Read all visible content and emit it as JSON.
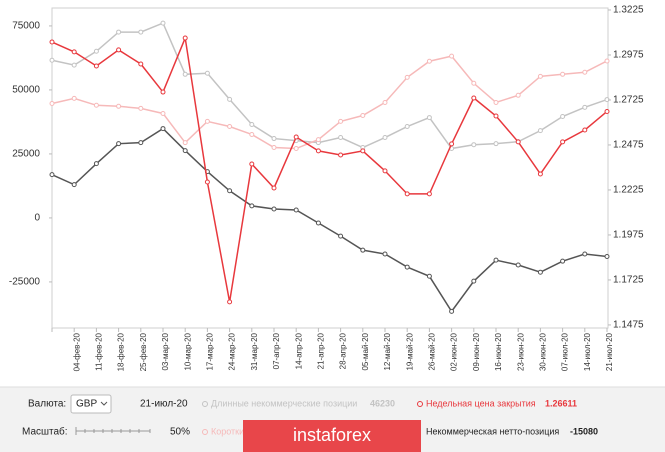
{
  "chart_data": {
    "type": "line",
    "categories": [
      null,
      "04-фев-20",
      "11-фев-20",
      "18-фев-20",
      "25-фев-20",
      "03-мар-20",
      "10-мар-20",
      "17-мар-20",
      "24-мар-20",
      "31-мар-20",
      "07-апр-20",
      "14-апр-20",
      "21-апр-20",
      "28-апр-20",
      "05-май-20",
      "12-май-20",
      "19-май-20",
      "26-май-20",
      "02-июн-20",
      "09-июн-20",
      "16-июн-20",
      "23-июн-20",
      "30-июн-20",
      "07-июл-20",
      "14-июл-20",
      "21-июл-20"
    ],
    "ylim": [
      -43000,
      82000
    ],
    "yticks": [
      -25000,
      0,
      25000,
      50000,
      75000
    ],
    "y2lim": [
      1.1458,
      1.3236
    ],
    "y2ticks": [
      1.1475,
      1.1725,
      1.1975,
      1.2225,
      1.2475,
      1.2725,
      1.2975,
      1.3225
    ],
    "series": [
      {
        "name": "Длинные некоммерческие позиции",
        "color": "#c3c3c3",
        "values": [
          61600,
          59700,
          65100,
          72600,
          72600,
          76100,
          56100,
          56500,
          46300,
          36500,
          31000,
          30200,
          29400,
          31400,
          27500,
          31400,
          35700,
          39200,
          27100,
          28600,
          29000,
          29800,
          34100,
          39600,
          43200,
          46230
        ]
      },
      {
        "name": "Короткие некоммерческие позиции",
        "color": "#f6b9b9",
        "values": [
          44700,
          46700,
          44000,
          43600,
          42800,
          40800,
          29400,
          37700,
          35700,
          32600,
          27500,
          27100,
          30600,
          37700,
          40000,
          45100,
          54900,
          61200,
          63200,
          52600,
          45100,
          47900,
          55300,
          56100,
          56900,
          61310
        ]
      },
      {
        "name": "Некоммерческая нетто-позиция",
        "color": "#555555",
        "values": [
          16900,
          13000,
          21200,
          29000,
          29400,
          34900,
          26300,
          18100,
          10600,
          4700,
          3500,
          3100,
          -2000,
          -7100,
          -12600,
          -14100,
          -19200,
          -22800,
          -36500,
          -24700,
          -16500,
          -18400,
          -21200,
          -16900,
          -14100,
          -15080
        ]
      },
      {
        "name": "Недельная цена закрытия",
        "color": "#e8383d",
        "axis": "y2",
        "values": [
          1.3047,
          1.2992,
          1.2914,
          1.3003,
          1.2925,
          1.2769,
          1.3069,
          1.2269,
          1.1603,
          1.2369,
          1.2236,
          1.2519,
          1.2442,
          1.2419,
          1.2442,
          1.2331,
          1.2203,
          1.2203,
          1.2481,
          1.2736,
          1.2636,
          1.2492,
          1.2314,
          1.2492,
          1.2558,
          1.26611
        ]
      }
    ]
  },
  "ui": {
    "currency_label": "Валюта:",
    "currency": "GBP",
    "scale_label": "Масштаб:",
    "scale": "50%",
    "logo": "instaforex"
  }
}
